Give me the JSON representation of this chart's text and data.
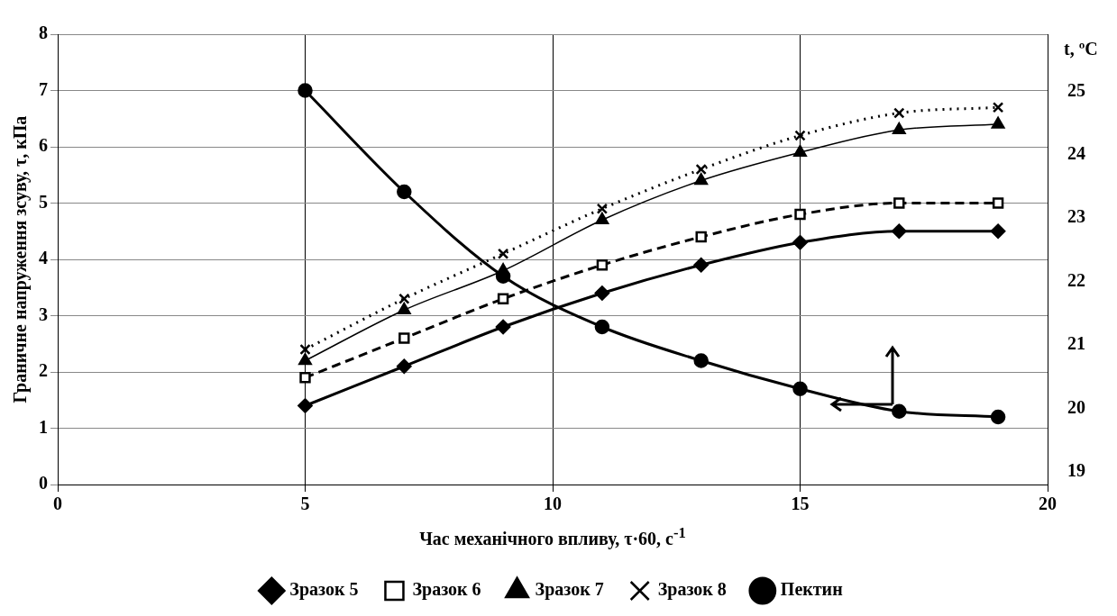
{
  "chart_data": {
    "type": "line",
    "xlabel": "Час механічного впливу, τ·60, с$^{-1}$",
    "ylabel": "Граничне напруження зсуву, τ, кПа",
    "y2label": "t, ºC",
    "x": [
      5,
      7,
      9,
      11,
      13,
      15,
      17,
      19
    ],
    "xlim": [
      0,
      20
    ],
    "xticks": [
      0,
      5,
      10,
      15,
      20
    ],
    "ylim": [
      0,
      8
    ],
    "yticks": [
      0,
      1,
      2,
      3,
      4,
      5,
      6,
      7,
      8
    ],
    "y2lim": [
      18.8,
      25.9
    ],
    "y2ticks": [
      19,
      20,
      21,
      22,
      23,
      24,
      25
    ],
    "grid": true,
    "legend": "bottom",
    "series": [
      {
        "name": "Зразок 5",
        "color": "#000000",
        "marker": "diamond",
        "line_style": "solid",
        "values": [
          1.4,
          2.1,
          2.8,
          3.4,
          3.9,
          4.3,
          4.5,
          4.5
        ]
      },
      {
        "name": "Зразок 6",
        "color": "#000000",
        "marker": "square",
        "line_style": "dashed",
        "values": [
          1.9,
          2.6,
          3.3,
          3.9,
          4.4,
          4.8,
          5.0,
          5.0
        ]
      },
      {
        "name": "Зразок 7",
        "color": "#000000",
        "marker": "triangle",
        "line_style": "solid",
        "values": [
          2.2,
          3.1,
          3.8,
          4.7,
          5.4,
          5.9,
          6.3,
          6.4
        ]
      },
      {
        "name": "Зразок 8",
        "color": "#000000",
        "marker": "cross",
        "line_style": "dotted",
        "values": [
          2.4,
          3.3,
          4.1,
          4.9,
          5.6,
          6.2,
          6.6,
          6.7
        ]
      },
      {
        "name": "Пектин",
        "color": "#000000",
        "marker": "circle",
        "line_style": "solid",
        "values": [
          7.0,
          5.2,
          3.7,
          2.8,
          2.2,
          1.7,
          1.3,
          1.2
        ]
      }
    ]
  }
}
